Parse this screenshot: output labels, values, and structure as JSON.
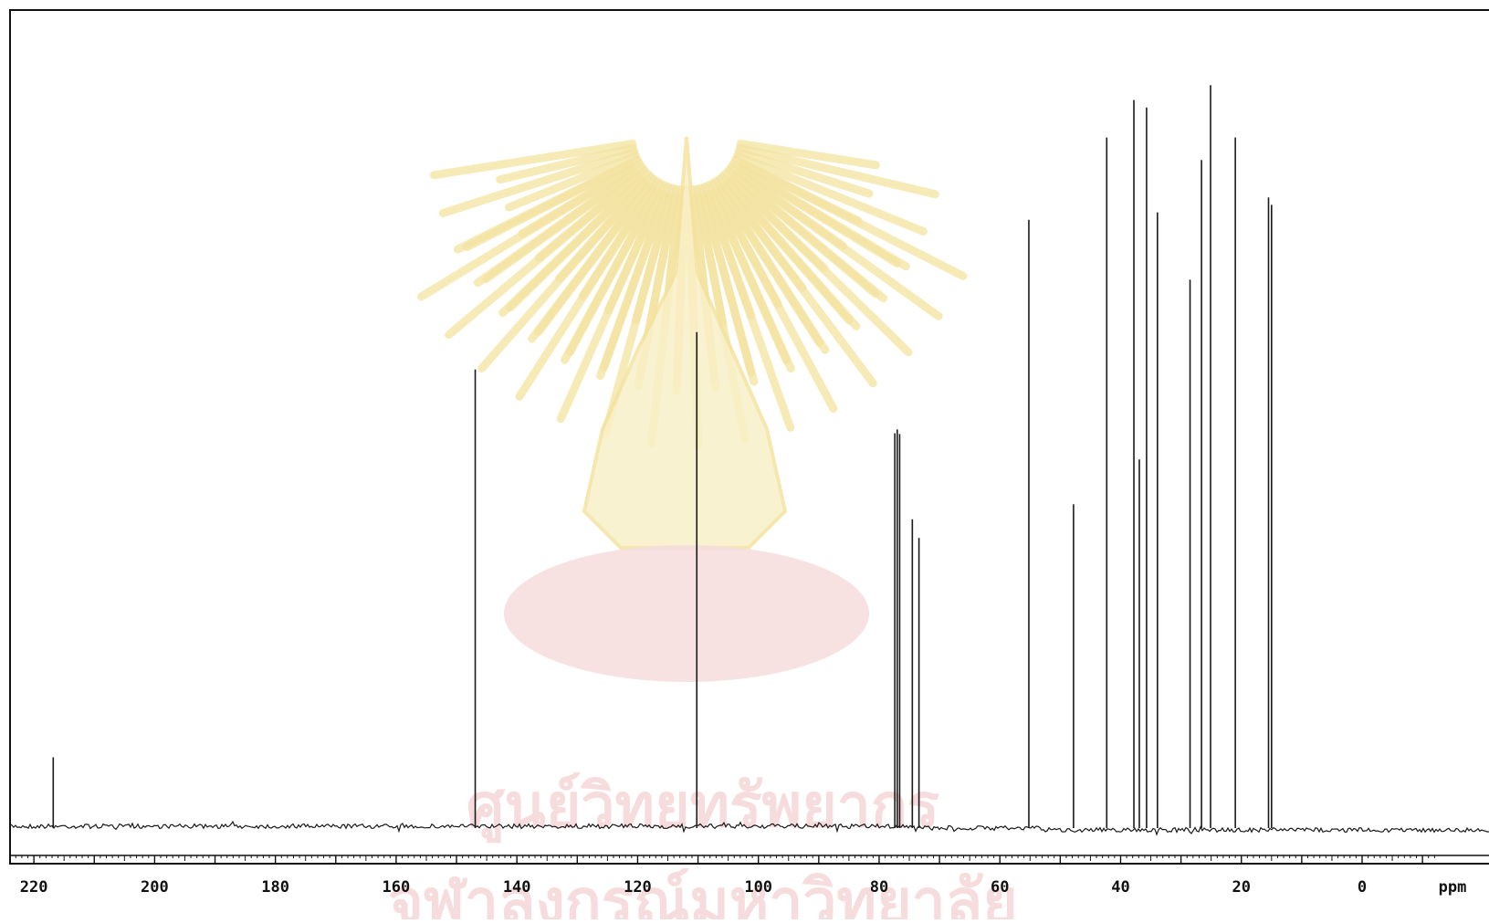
{
  "chart_data": {
    "type": "line",
    "title": "",
    "xlabel": "ppm",
    "ylabel": "",
    "x_direction": "descending",
    "xlim": [
      229,
      -12
    ],
    "ylim": [
      0,
      100
    ],
    "grid": false,
    "legend": "none",
    "xticks": [
      220,
      200,
      180,
      160,
      140,
      120,
      100,
      80,
      60,
      40,
      20,
      0
    ],
    "tick_labels": [
      "220",
      "200",
      "180",
      "160",
      "140",
      "120",
      "100",
      "80",
      "60",
      "40",
      "20",
      "0"
    ],
    "series": [
      {
        "peaks": [
          {
            "ppm": 216.8,
            "height": 9.2
          },
          {
            "ppm": 146.9,
            "height": 61.0
          },
          {
            "ppm": 110.2,
            "height": 66.0
          },
          {
            "ppm": 77.4,
            "height": 52.5
          },
          {
            "ppm": 77.0,
            "height": 53.0
          },
          {
            "ppm": 76.6,
            "height": 52.4
          },
          {
            "ppm": 74.5,
            "height": 41.0
          },
          {
            "ppm": 73.4,
            "height": 38.5
          },
          {
            "ppm": 55.2,
            "height": 81.0
          },
          {
            "ppm": 47.8,
            "height": 43.0
          },
          {
            "ppm": 42.3,
            "height": 92.0
          },
          {
            "ppm": 37.8,
            "height": 97.0
          },
          {
            "ppm": 36.9,
            "height": 49.0
          },
          {
            "ppm": 35.7,
            "height": 96.0
          },
          {
            "ppm": 33.9,
            "height": 82.0
          },
          {
            "ppm": 28.5,
            "height": 73.0
          },
          {
            "ppm": 26.6,
            "height": 89.0
          },
          {
            "ppm": 25.1,
            "height": 99.0
          },
          {
            "ppm": 21.0,
            "height": 92.0
          },
          {
            "ppm": 15.5,
            "height": 84.0
          },
          {
            "ppm": 15.0,
            "height": 83.0
          }
        ]
      }
    ]
  },
  "colors": {
    "spectrum": "#1a1a1a",
    "frame": "#111111",
    "watermark_gold": "#f4e3a0",
    "watermark_red": "#f7dede"
  },
  "watermark": {
    "icon": "university-emblem-watermark",
    "text_line_1": "ศูนย์วิทยทรัพยากร",
    "text_line_2": "จุฬาลงกรณ์มหาวิทยาลัย"
  }
}
